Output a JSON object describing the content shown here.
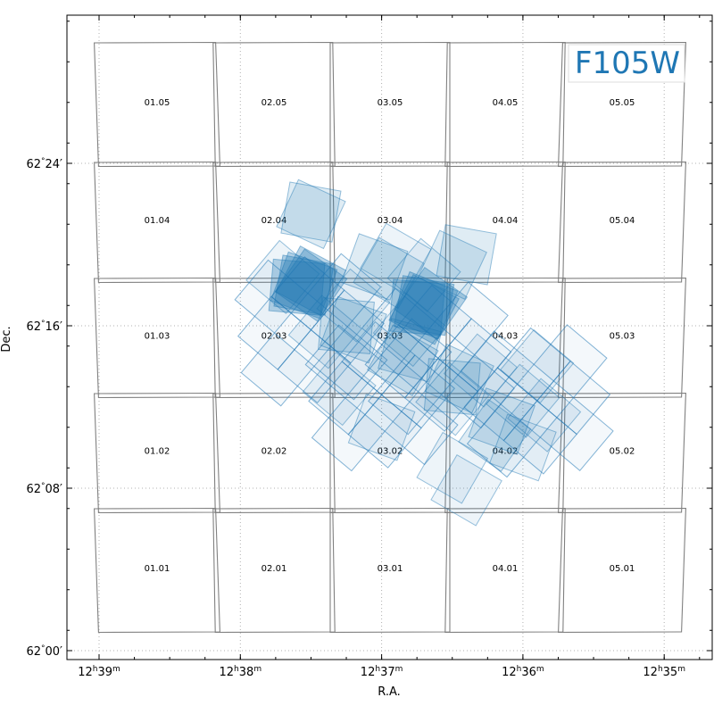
{
  "chart_data": {
    "type": "scatter",
    "title": "",
    "filter_label": "F105W",
    "xlabel": "R.A.",
    "ylabel": "Dec.",
    "grid": true,
    "x_axis": {
      "ticks": [
        {
          "h": "12",
          "m": "39",
          "ra_hours": 12.65
        },
        {
          "h": "12",
          "m": "38",
          "ra_hours": 12.6333
        },
        {
          "h": "12",
          "m": "37",
          "ra_hours": 12.6167
        },
        {
          "h": "12",
          "m": "36",
          "ra_hours": 12.6
        },
        {
          "h": "12",
          "m": "35",
          "ra_hours": 12.5833
        }
      ]
    },
    "y_axis": {
      "ticks": [
        {
          "deg": "62",
          "arcmin": "00",
          "dec_arcmin": 0
        },
        {
          "deg": "62",
          "arcmin": "08",
          "dec_arcmin": 8
        },
        {
          "deg": "62",
          "arcmin": "16",
          "dec_arcmin": 16
        },
        {
          "deg": "62",
          "arcmin": "24",
          "dec_arcmin": 24
        }
      ]
    },
    "tiles": [
      "01.05",
      "02.05",
      "03.05",
      "04.05",
      "05.05",
      "01.04",
      "02.04",
      "03.04",
      "04.04",
      "05.04",
      "01.03",
      "02.03",
      "03.03",
      "04.03",
      "05.03",
      "01.02",
      "02.02",
      "03.02",
      "04.02",
      "05.02",
      "01.01",
      "02.01",
      "03.01",
      "04.01",
      "05.01"
    ],
    "exposures": [
      {
        "ra_min": 36.7,
        "dec_arcmin": 18.5,
        "angle": 40,
        "alpha": 0.08
      },
      {
        "ra_min": 36.9,
        "dec_arcmin": 19.3,
        "angle": 30,
        "alpha": 0.08
      },
      {
        "ra_min": 37.7,
        "dec_arcmin": 18.4,
        "angle": 40,
        "alpha": 0.08
      },
      {
        "ra_min": 37.2,
        "dec_arcmin": 17.0,
        "angle": 40,
        "alpha": 0.08
      },
      {
        "ra_min": 36.8,
        "dec_arcmin": 15.8,
        "angle": 40,
        "alpha": 0.08
      },
      {
        "ra_min": 36.3,
        "dec_arcmin": 13.8,
        "angle": 40,
        "alpha": 0.08
      },
      {
        "ra_min": 36.5,
        "dec_arcmin": 12.4,
        "angle": 40,
        "alpha": 0.08
      },
      {
        "ra_min": 36.0,
        "dec_arcmin": 12.3,
        "angle": 40,
        "alpha": 0.08
      },
      {
        "ra_min": 37.3,
        "dec_arcmin": 12.9,
        "angle": 40,
        "alpha": 0.08
      },
      {
        "ra_min": 37.4,
        "dec_arcmin": 15.7,
        "angle": 40,
        "alpha": 0.08
      },
      {
        "ra_min": 35.9,
        "dec_arcmin": 14.0,
        "angle": 40,
        "alpha": 0.08
      },
      {
        "ra_min": 36.0,
        "dec_arcmin": 10.0,
        "angle": 20,
        "alpha": 0.08
      },
      {
        "ra_min": 36.5,
        "dec_arcmin": 9.0,
        "angle": 30,
        "alpha": 0.08
      },
      {
        "ra_min": 36.4,
        "dec_arcmin": 7.9,
        "angle": 30,
        "alpha": 0.08
      },
      {
        "ra_min": 35.85,
        "dec_arcmin": 11.6,
        "angle": 40,
        "alpha": 0.08
      },
      {
        "ra_min": 37.0,
        "dec_arcmin": 11.0,
        "angle": 20,
        "alpha": 0.08
      },
      {
        "ra_min": 37.5,
        "dec_arcmin": 21.6,
        "angle": 10,
        "alpha": 0.14
      },
      {
        "ra_min": 37.5,
        "dec_arcmin": 21.5,
        "angle": 25,
        "alpha": 0.14
      },
      {
        "ra_min": 36.4,
        "dec_arcmin": 19.5,
        "angle": 10,
        "alpha": 0.14
      },
      {
        "ra_min": 36.5,
        "dec_arcmin": 19.0,
        "angle": 25,
        "alpha": 0.14
      },
      {
        "ra_min": 37.05,
        "dec_arcmin": 18.9,
        "angle": 20,
        "alpha": 0.14
      },
      {
        "ra_min": 36.95,
        "dec_arcmin": 18.6,
        "angle": 30,
        "alpha": 0.14
      },
      {
        "ra_min": 37.25,
        "dec_arcmin": 16.0,
        "angle": 5,
        "alpha": 0.14
      },
      {
        "ra_min": 37.2,
        "dec_arcmin": 15.8,
        "angle": 20,
        "alpha": 0.14
      },
      {
        "ra_min": 36.85,
        "dec_arcmin": 14.3,
        "angle": 30,
        "alpha": 0.14
      },
      {
        "ra_min": 36.8,
        "dec_arcmin": 14.8,
        "angle": 15,
        "alpha": 0.14
      },
      {
        "ra_min": 36.5,
        "dec_arcmin": 13.0,
        "angle": 5,
        "alpha": 0.14
      },
      {
        "ra_min": 36.45,
        "dec_arcmin": 13.4,
        "angle": 25,
        "alpha": 0.14
      },
      {
        "ra_min": 36.15,
        "dec_arcmin": 11.3,
        "angle": 20,
        "alpha": 0.14
      },
      {
        "ra_min": 36.2,
        "dec_arcmin": 10.6,
        "angle": 35,
        "alpha": 0.14
      },
      {
        "ra_min": 37.55,
        "dec_arcmin": 18.0,
        "angle": 10,
        "alpha": 0.3
      },
      {
        "ra_min": 37.55,
        "dec_arcmin": 18.0,
        "angle": 20,
        "alpha": 0.3
      },
      {
        "ra_min": 37.5,
        "dec_arcmin": 18.0,
        "angle": 35,
        "alpha": 0.3
      },
      {
        "ra_min": 37.6,
        "dec_arcmin": 17.9,
        "angle": 5,
        "alpha": 0.3
      },
      {
        "ra_min": 37.5,
        "dec_arcmin": 18.2,
        "angle": 28,
        "alpha": 0.3
      },
      {
        "ra_min": 36.7,
        "dec_arcmin": 17.0,
        "angle": 10,
        "alpha": 0.3
      },
      {
        "ra_min": 36.7,
        "dec_arcmin": 17.0,
        "angle": 22,
        "alpha": 0.3
      },
      {
        "ra_min": 36.65,
        "dec_arcmin": 17.1,
        "angle": 35,
        "alpha": 0.3
      },
      {
        "ra_min": 36.75,
        "dec_arcmin": 16.9,
        "angle": 5,
        "alpha": 0.3
      },
      {
        "ra_min": 36.7,
        "dec_arcmin": 16.8,
        "angle": 28,
        "alpha": 0.3
      }
    ],
    "mosaic_grid": [
      {
        "ra_min": 37.5,
        "dec_arcmin": 15.8,
        "angle": 40
      },
      {
        "ra_min": 36.6,
        "dec_arcmin": 14.4,
        "angle": 40
      },
      {
        "ra_min": 37.0,
        "dec_arcmin": 12.6,
        "angle": 40
      },
      {
        "ra_min": 35.9,
        "dec_arcmin": 12.3,
        "angle": 40
      }
    ]
  }
}
